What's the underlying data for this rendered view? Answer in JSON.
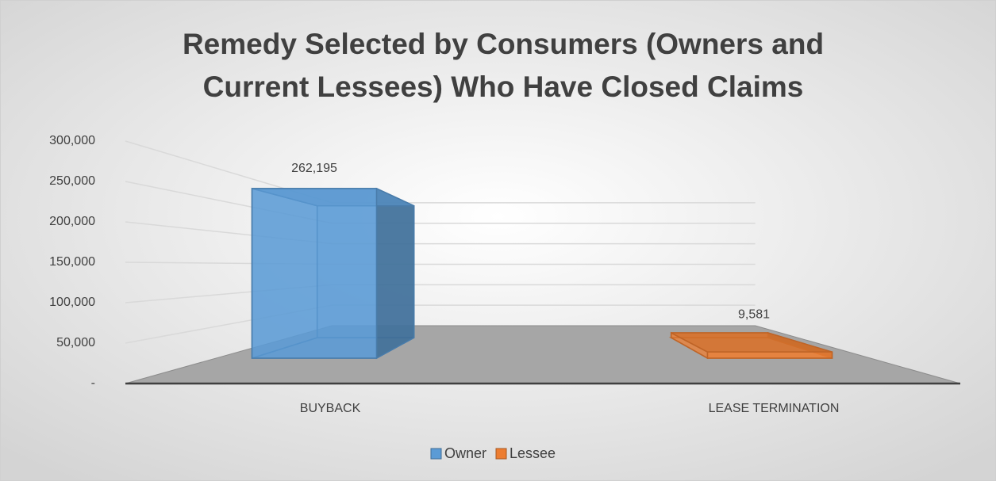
{
  "chart_data": {
    "type": "bar3d",
    "title": "Remedy Selected by Consumers (Owners and Current Lessees) Who Have Closed Claims",
    "categories": [
      "BUYBACK",
      "LEASE TERMINATION"
    ],
    "series": [
      {
        "name": "Owner",
        "color": "#5b9bd5",
        "values": [
          262195,
          null
        ],
        "value_labels": [
          "262,195",
          null
        ]
      },
      {
        "name": "Lessee",
        "color": "#ed7d31",
        "values": [
          null,
          9581
        ],
        "value_labels": [
          null,
          "9,581"
        ]
      }
    ],
    "ylim": [
      0,
      300000
    ],
    "yticks": [
      {
        "value": 0,
        "label": "-"
      },
      {
        "value": 50000,
        "label": "50,000"
      },
      {
        "value": 100000,
        "label": "100,000"
      },
      {
        "value": 150000,
        "label": "150,000"
      },
      {
        "value": 200000,
        "label": "200,000"
      },
      {
        "value": 250000,
        "label": "250,000"
      },
      {
        "value": 300000,
        "label": "300,000"
      }
    ],
    "grid": true,
    "legend": "bottom"
  }
}
